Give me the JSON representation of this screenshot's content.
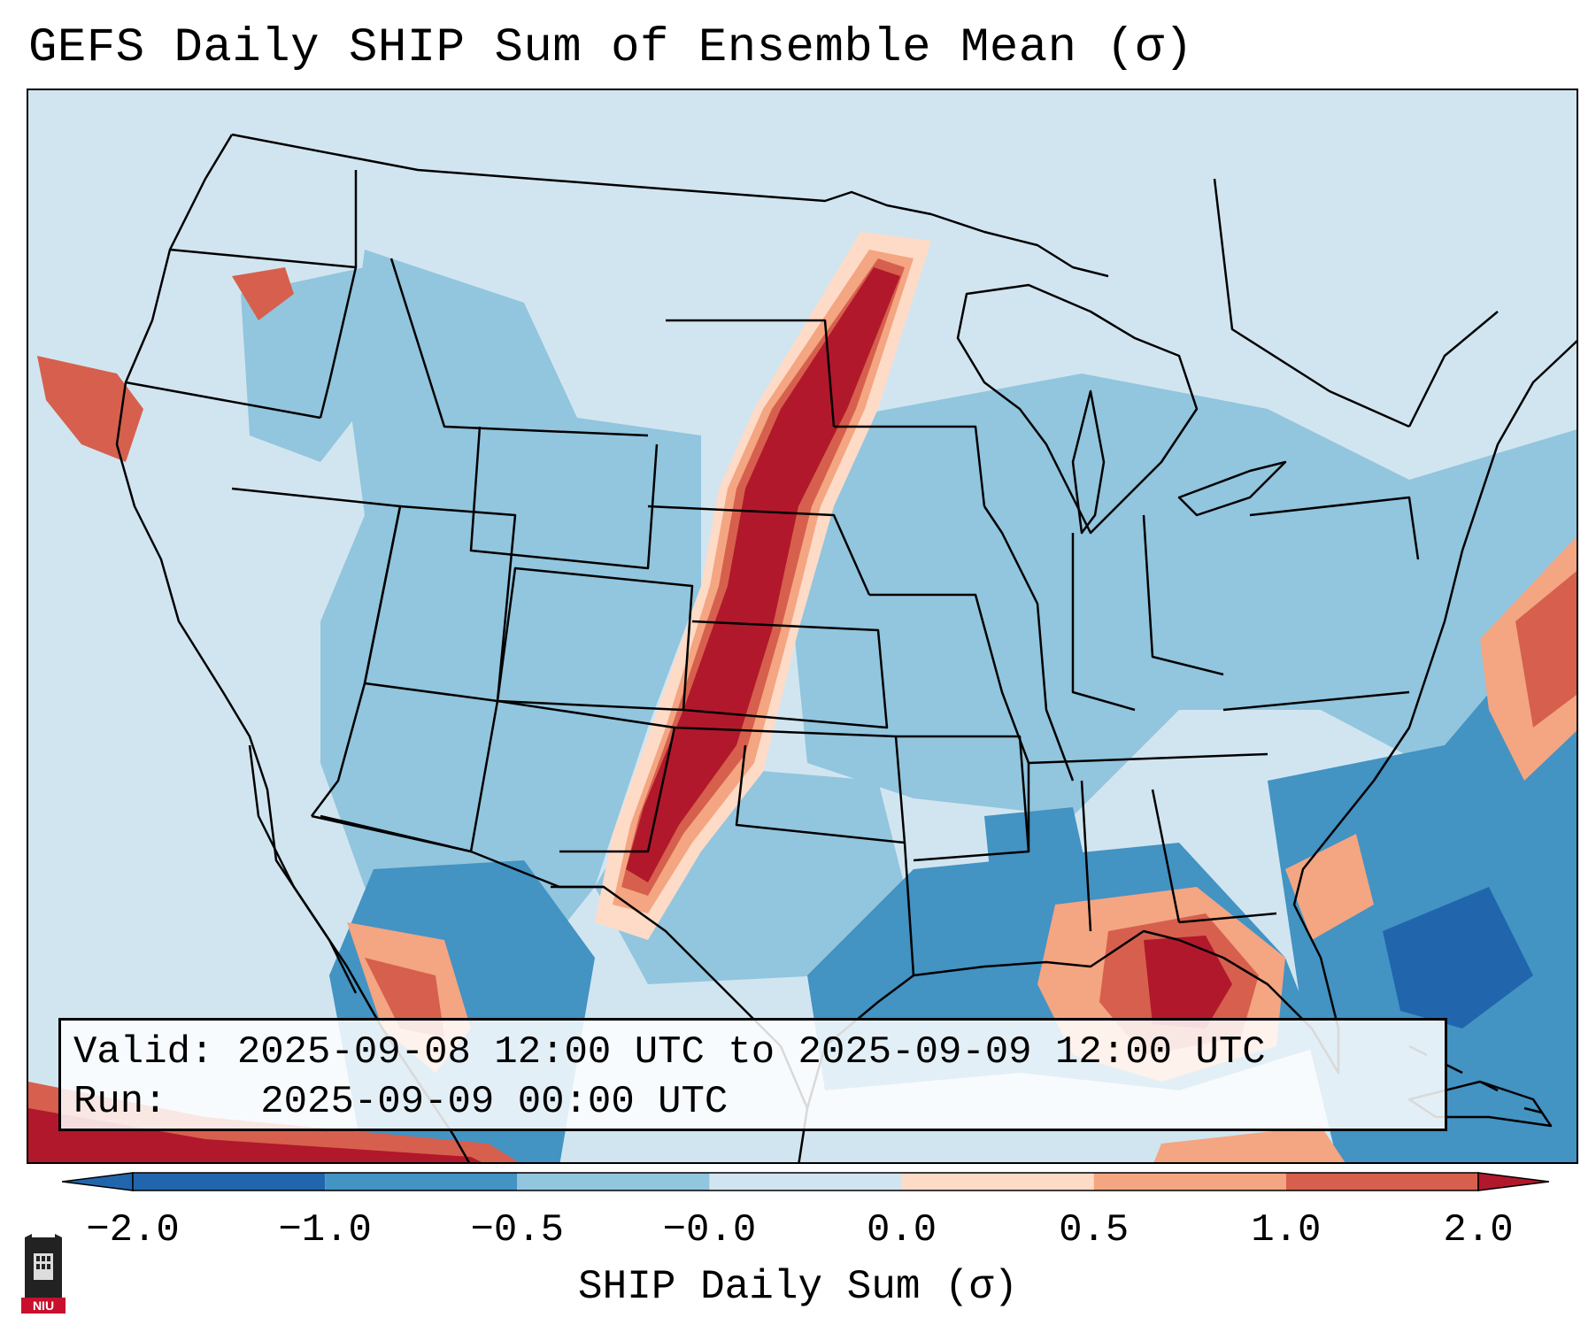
{
  "title": "GEFS Daily SHIP Sum of Ensemble Mean (σ)",
  "info": {
    "valid_label": "Valid:",
    "valid_value": "2025-09-08 12:00 UTC to 2025-09-09 12:00 UTC",
    "run_label": "Run:",
    "run_value": "2025-09-09 00:00 UTC"
  },
  "colorbar": {
    "label": "SHIP Daily Sum (σ)",
    "ticks": [
      "−2.0",
      "−1.0",
      "−0.5",
      "−0.0",
      "0.0",
      "0.5",
      "1.0",
      "2.0"
    ],
    "colors": [
      "#2166ac",
      "#4393c3",
      "#92c5de",
      "#d1e5f0",
      "#fddbc7",
      "#f4a582",
      "#d6604d",
      "#b2182b"
    ]
  },
  "logo": {
    "text": "NIU"
  },
  "map": {
    "background_color": "#d1e5f0",
    "boundary_color": "#000000"
  }
}
